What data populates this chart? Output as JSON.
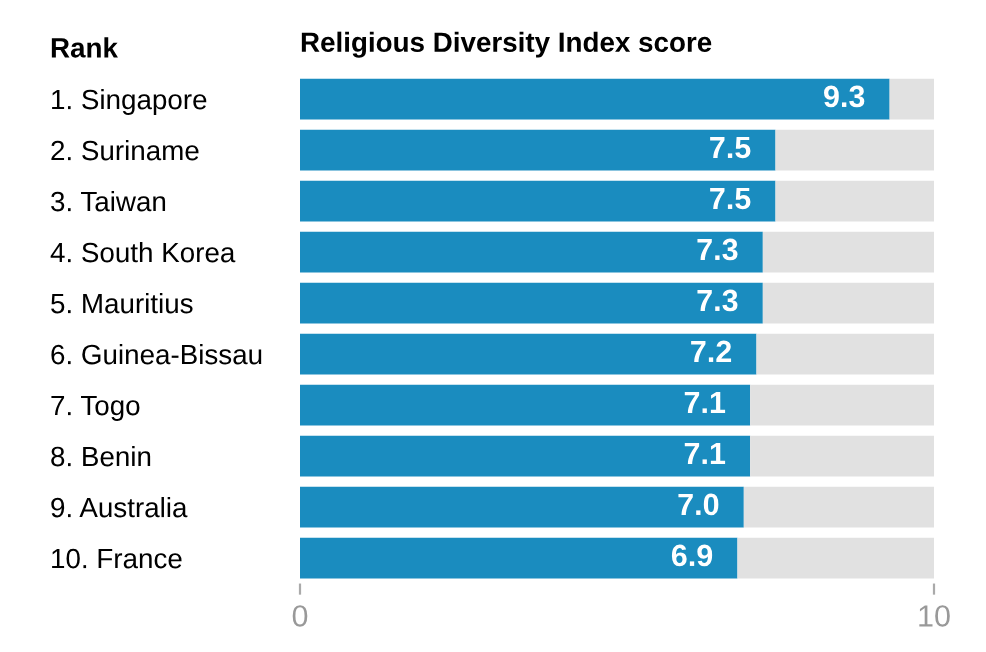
{
  "chart_data": {
    "type": "bar",
    "orientation": "horizontal",
    "stacked": true,
    "title": "Religious Diversity Index score",
    "ylabel": "Rank",
    "categories": [
      "1. Singapore",
      "2. Suriname",
      "3. Taiwan",
      "4. South Korea",
      "5. Mauritius",
      "6. Guinea-Bissau",
      "7. Togo",
      "8. Benin",
      "9. Australia",
      "10. France"
    ],
    "series": [
      {
        "color": "#1a8cbf",
        "values": [
          9.3,
          7.5,
          7.5,
          7.3,
          7.3,
          7.2,
          7.1,
          7.1,
          7.0,
          6.9
        ],
        "value_labels": [
          "9.3",
          "7.5",
          "7.5",
          "7.3",
          "7.3",
          "7.2",
          "7.1",
          "7.1",
          "7.0",
          "6.9"
        ]
      },
      {
        "color": "#e1e1e1",
        "values": [
          0.7,
          2.5,
          2.5,
          2.7,
          2.7,
          2.8,
          2.9,
          2.9,
          3.0,
          3.1
        ]
      }
    ],
    "xlim": [
      0,
      10
    ],
    "xticks": [
      0,
      10
    ],
    "grid": false,
    "legend": false
  }
}
